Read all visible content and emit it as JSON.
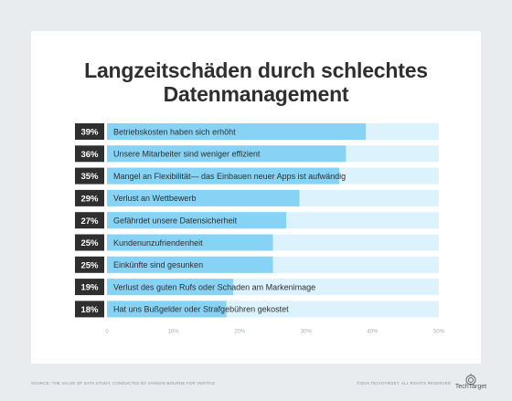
{
  "title_line1": "Langzeitschäden durch schlechtes",
  "title_line2": "Datenmanagement",
  "source": "SOURCE: THE VALUE OF DATA STUDY, CONDUCTED BY VANSON BOURNE FOR VERITAS",
  "copyright": "©2019 TECHTARGET. ALL RIGHTS RESERVED",
  "logo_text": "TechTarget",
  "colors": {
    "bar": "#87d3f5",
    "track": "#dcf2fc",
    "badge": "#2f2f2f",
    "badge_text": "#ffffff",
    "label": "#2f2f2f",
    "tick": "#a8aeb5"
  },
  "chart_data": {
    "type": "bar",
    "orientation": "horizontal",
    "title": "Langzeitschäden durch schlechtes Datenmanagement",
    "categories": [
      "Betriebskosten haben sich erhöht",
      "Unsere Mitarbeiter sind weniger effizient",
      "Mangel an Flexibilität— das Einbauen neuer Apps ist aufwändig",
      "Verlust an Wettbewerb",
      "Gefährdet unsere Datensicherheit",
      "Kundenunzufriendenheit",
      "Einkünfte sind gesunken",
      "Verlust des guten Rufs oder Schaden am Markenimage",
      "Hat uns Bußgelder oder Strafgebühren gekostet"
    ],
    "values": [
      39,
      36,
      35,
      29,
      27,
      25,
      25,
      19,
      18
    ],
    "value_labels": [
      "39%",
      "36%",
      "35%",
      "29%",
      "27%",
      "25%",
      "25%",
      "19%",
      "18%"
    ],
    "xlim": [
      0,
      50
    ],
    "xticks": [
      0,
      10,
      20,
      30,
      40,
      50
    ],
    "xtick_labels": [
      "0",
      "10%",
      "20%",
      "30%",
      "40%",
      "50%"
    ],
    "grid": false,
    "legend": "none"
  }
}
